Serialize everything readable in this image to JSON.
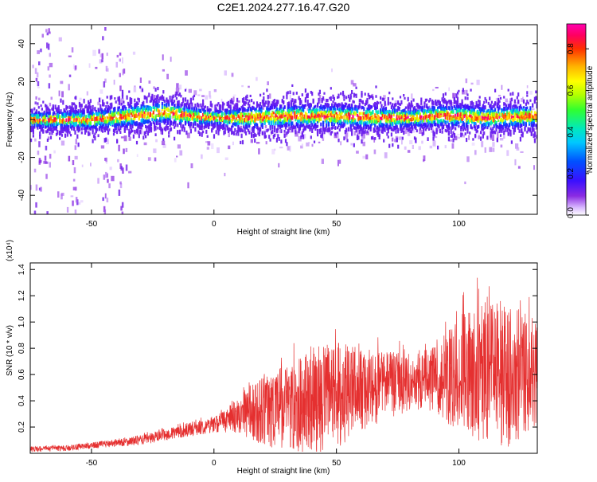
{
  "title": "C2E1.2024.277.16.47.G20",
  "chart_data": [
    {
      "type": "heatmap",
      "xlabel": "Height of straight line (km)",
      "ylabel": "Frequency (Hz)",
      "xlim": [
        -75,
        132
      ],
      "ylim": [
        -50,
        50
      ],
      "xticks": [
        -50,
        0,
        50,
        100
      ],
      "yticks": [
        -40,
        -20,
        0,
        20,
        40
      ],
      "colorbar": {
        "label": "Normalized spectral amplitude",
        "range": [
          0,
          0.92
        ],
        "ticks": [
          0.0,
          0.2,
          0.4,
          0.6,
          0.8
        ],
        "tick_labels": [
          "0.0",
          "0.2",
          "0.4",
          "0.6",
          "0.8"
        ]
      },
      "ridge": {
        "description_points_x": [
          -75,
          -50,
          -35,
          -20,
          -10,
          0,
          15,
          30,
          50,
          70,
          80,
          90,
          100,
          110,
          132
        ],
        "center_frequency_hz": [
          0,
          0,
          2,
          4,
          2,
          1,
          1,
          2,
          2,
          1,
          1,
          2,
          2,
          1,
          2
        ],
        "half_width_hz": [
          4,
          5,
          6,
          6,
          5,
          4,
          6,
          6,
          6,
          6,
          5,
          6,
          6,
          6,
          6
        ]
      },
      "grid": false
    },
    {
      "type": "line",
      "xlabel": "Height of straight line (km)",
      "ylabel": "SNR (10 * v/v)",
      "y_multiplier": "(x10⁴)",
      "xlim": [
        -75,
        132
      ],
      "ylim": [
        0,
        1.45
      ],
      "xticks": [
        -50,
        0,
        50,
        100
      ],
      "yticks": [
        0.2,
        0.4,
        0.6,
        0.8,
        1.0,
        1.2,
        1.4
      ],
      "ytick_labels": [
        "0.2",
        "0.4",
        "0.6",
        "0.8",
        "1.0",
        "1.2",
        "1.4"
      ],
      "color": "#e53030",
      "series": [
        {
          "x": [
            -75,
            -60,
            -50,
            -40,
            -30,
            -20,
            -10,
            0,
            10,
            20,
            30,
            40,
            50,
            60,
            70,
            80,
            90,
            100,
            110,
            120,
            132
          ],
          "y_mean": [
            0.03,
            0.04,
            0.06,
            0.08,
            0.1,
            0.14,
            0.18,
            0.22,
            0.28,
            0.33,
            0.36,
            0.4,
            0.44,
            0.48,
            0.52,
            0.55,
            0.57,
            0.6,
            0.62,
            0.6,
            0.6
          ],
          "y_peak": [
            0.06,
            0.07,
            0.09,
            0.12,
            0.15,
            0.2,
            0.25,
            0.3,
            0.45,
            0.7,
            0.8,
            0.95,
            1.0,
            0.9,
            0.88,
            0.85,
            0.9,
            1.2,
            1.4,
            1.35,
            1.15
          ]
        }
      ]
    }
  ]
}
